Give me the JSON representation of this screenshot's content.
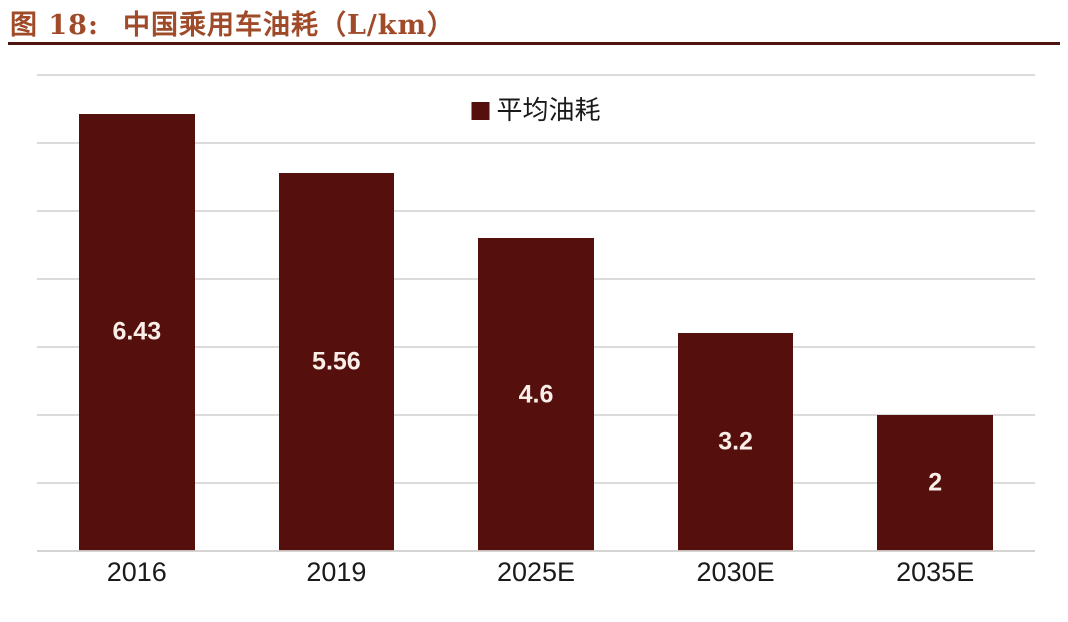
{
  "header": {
    "figure_label": "图 18:",
    "title": "中国乘用车油耗（L/km）"
  },
  "legend": {
    "label": "平均油耗"
  },
  "colors": {
    "bar": "#550F0D",
    "title_text": "#9F4A28",
    "divider": "#4E1410",
    "gridline": "#DBDBDB",
    "axis_line": "#D2CFCD",
    "value_label": "#F9EFE8",
    "category_label": "#1A1A1A",
    "legend_text": "#1A1A1A",
    "background": "#FFFFFF"
  },
  "chart_data": {
    "type": "bar",
    "title": "中国乘用车油耗（L/km）",
    "categories": [
      "2016",
      "2019",
      "2025E",
      "2030E",
      "2035E"
    ],
    "series": [
      {
        "name": "平均油耗",
        "values": [
          6.43,
          5.56,
          4.6,
          3.2,
          2
        ]
      }
    ],
    "value_labels": [
      "6.43",
      "5.56",
      "4.6",
      "3.2",
      "2"
    ],
    "xlabel": "",
    "ylabel": "",
    "ylim": [
      0,
      7
    ],
    "gridline_interval": 1,
    "grid": true,
    "y_tick_labels_visible": false,
    "legend_position": "top-center",
    "value_label_position": "center-inside-bar"
  }
}
